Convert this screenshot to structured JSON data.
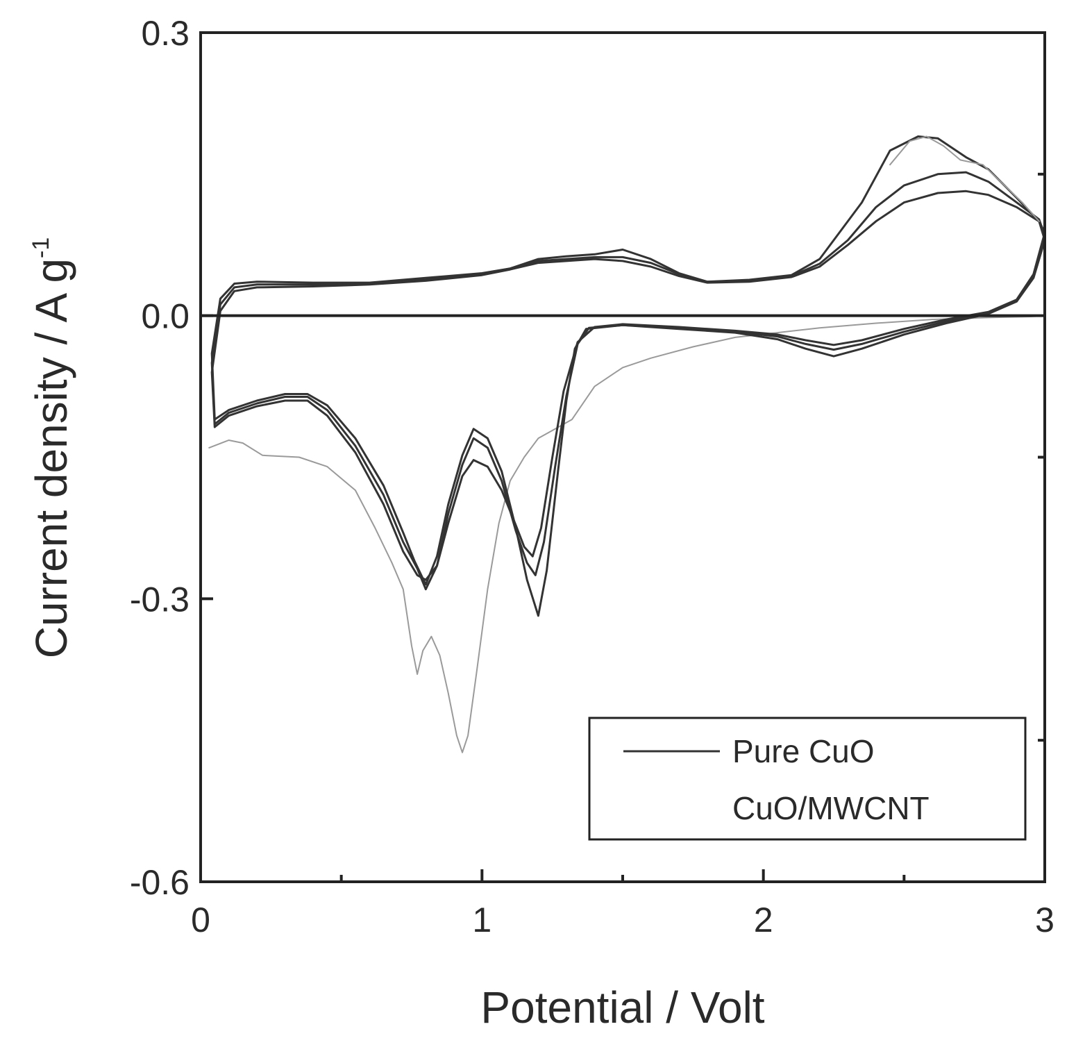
{
  "chart_data": {
    "type": "line",
    "title": "",
    "xlabel": "Potential / Volt",
    "ylabel_main": "Current density / A g",
    "ylabel_sup": "-1",
    "xlim": [
      0,
      3
    ],
    "ylim": [
      -0.6,
      0.3
    ],
    "x_major_ticks": [
      0,
      1,
      2,
      3
    ],
    "x_tick_labels": [
      "0",
      "1",
      "2",
      "3"
    ],
    "x_minor_ticks": [
      0.5,
      1.5,
      2.5
    ],
    "y_major_ticks": [
      0.3,
      0.0,
      -0.3,
      -0.6
    ],
    "y_tick_labels": [
      "0.3",
      "0.0",
      "-0.3",
      "-0.6"
    ],
    "y_minor_ticks": [
      0.15,
      -0.15,
      -0.45
    ],
    "grid": false,
    "legend": {
      "placement": "bottom-right",
      "entries": [
        {
          "label": "Pure CuO",
          "has_line": true
        },
        {
          "label": "CuO/MWCNT",
          "has_line": false
        }
      ]
    },
    "colors": {
      "line": "#333333",
      "faint_line": "#9a9a9a",
      "axis": "#222222"
    },
    "series": [
      {
        "cycle": "1",
        "style": "faint",
        "points": [
          [
            0.03,
            -0.14
          ],
          [
            0.1,
            -0.132
          ],
          [
            0.15,
            -0.135
          ],
          [
            0.22,
            -0.148
          ],
          [
            0.35,
            -0.15
          ],
          [
            0.45,
            -0.16
          ],
          [
            0.55,
            -0.185
          ],
          [
            0.62,
            -0.225
          ],
          [
            0.68,
            -0.262
          ],
          [
            0.72,
            -0.29
          ],
          [
            0.75,
            -0.35
          ],
          [
            0.77,
            -0.38
          ],
          [
            0.79,
            -0.355
          ],
          [
            0.82,
            -0.34
          ],
          [
            0.85,
            -0.36
          ],
          [
            0.88,
            -0.4
          ],
          [
            0.91,
            -0.445
          ],
          [
            0.93,
            -0.463
          ],
          [
            0.95,
            -0.445
          ],
          [
            0.98,
            -0.38
          ],
          [
            1.02,
            -0.29
          ],
          [
            1.06,
            -0.22
          ],
          [
            1.1,
            -0.175
          ],
          [
            1.15,
            -0.15
          ],
          [
            1.2,
            -0.13
          ],
          [
            1.26,
            -0.12
          ],
          [
            1.32,
            -0.11
          ],
          [
            1.4,
            -0.075
          ],
          [
            1.5,
            -0.055
          ],
          [
            1.6,
            -0.045
          ],
          [
            1.75,
            -0.033
          ],
          [
            1.9,
            -0.023
          ],
          [
            2.05,
            -0.018
          ],
          [
            2.2,
            -0.013
          ],
          [
            2.4,
            -0.008
          ],
          [
            2.6,
            -0.004
          ],
          [
            2.8,
            -0.002
          ],
          [
            2.95,
            -0.001
          ],
          [
            3.0,
            0.0
          ]
        ]
      },
      {
        "cycle": "2",
        "style": "dark",
        "points": [
          [
            0.05,
            -0.11
          ],
          [
            0.1,
            -0.1
          ],
          [
            0.2,
            -0.09
          ],
          [
            0.3,
            -0.083
          ],
          [
            0.38,
            -0.083
          ],
          [
            0.45,
            -0.095
          ],
          [
            0.55,
            -0.13
          ],
          [
            0.65,
            -0.18
          ],
          [
            0.72,
            -0.23
          ],
          [
            0.76,
            -0.26
          ],
          [
            0.8,
            -0.285
          ],
          [
            0.84,
            -0.255
          ],
          [
            0.88,
            -0.2
          ],
          [
            0.93,
            -0.148
          ],
          [
            0.97,
            -0.12
          ],
          [
            1.02,
            -0.13
          ],
          [
            1.07,
            -0.165
          ],
          [
            1.12,
            -0.225
          ],
          [
            1.16,
            -0.28
          ],
          [
            1.2,
            -0.318
          ],
          [
            1.23,
            -0.27
          ],
          [
            1.27,
            -0.165
          ],
          [
            1.3,
            -0.09
          ],
          [
            1.33,
            -0.035
          ],
          [
            1.37,
            -0.014
          ],
          [
            1.5,
            -0.01
          ],
          [
            1.7,
            -0.014
          ],
          [
            1.9,
            -0.018
          ],
          [
            2.05,
            -0.025
          ],
          [
            2.15,
            -0.035
          ],
          [
            2.25,
            -0.043
          ],
          [
            2.35,
            -0.035
          ],
          [
            2.5,
            -0.02
          ],
          [
            2.65,
            -0.008
          ],
          [
            2.8,
            0.002
          ],
          [
            2.9,
            0.015
          ],
          [
            2.96,
            0.04
          ],
          [
            3.0,
            0.08
          ],
          [
            2.98,
            0.1
          ],
          [
            2.9,
            0.125
          ],
          [
            2.8,
            0.155
          ],
          [
            2.72,
            0.168
          ],
          [
            2.62,
            0.188
          ],
          [
            2.55,
            0.19
          ],
          [
            2.45,
            0.175
          ],
          [
            2.35,
            0.12
          ],
          [
            2.2,
            0.06
          ],
          [
            2.1,
            0.043
          ],
          [
            1.95,
            0.038
          ],
          [
            1.8,
            0.036
          ],
          [
            1.7,
            0.045
          ],
          [
            1.6,
            0.06
          ],
          [
            1.5,
            0.07
          ],
          [
            1.4,
            0.065
          ],
          [
            1.3,
            0.063
          ],
          [
            1.2,
            0.06
          ],
          [
            1.1,
            0.05
          ],
          [
            1.0,
            0.045
          ],
          [
            0.8,
            0.04
          ],
          [
            0.6,
            0.035
          ],
          [
            0.4,
            0.035
          ],
          [
            0.2,
            0.036
          ],
          [
            0.12,
            0.034
          ],
          [
            0.07,
            0.018
          ],
          [
            0.04,
            -0.04
          ],
          [
            0.05,
            -0.11
          ]
        ]
      },
      {
        "cycle": "3",
        "style": "dark",
        "points": [
          [
            0.05,
            -0.115
          ],
          [
            0.1,
            -0.103
          ],
          [
            0.2,
            -0.093
          ],
          [
            0.3,
            -0.086
          ],
          [
            0.38,
            -0.086
          ],
          [
            0.45,
            -0.1
          ],
          [
            0.55,
            -0.138
          ],
          [
            0.65,
            -0.19
          ],
          [
            0.72,
            -0.24
          ],
          [
            0.77,
            -0.268
          ],
          [
            0.8,
            -0.29
          ],
          [
            0.84,
            -0.265
          ],
          [
            0.88,
            -0.21
          ],
          [
            0.93,
            -0.158
          ],
          [
            0.97,
            -0.13
          ],
          [
            1.02,
            -0.14
          ],
          [
            1.07,
            -0.175
          ],
          [
            1.12,
            -0.228
          ],
          [
            1.16,
            -0.262
          ],
          [
            1.19,
            -0.275
          ],
          [
            1.22,
            -0.24
          ],
          [
            1.26,
            -0.16
          ],
          [
            1.3,
            -0.085
          ],
          [
            1.34,
            -0.03
          ],
          [
            1.38,
            -0.013
          ],
          [
            1.5,
            -0.01
          ],
          [
            1.7,
            -0.013
          ],
          [
            1.9,
            -0.017
          ],
          [
            2.05,
            -0.022
          ],
          [
            2.15,
            -0.03
          ],
          [
            2.25,
            -0.036
          ],
          [
            2.35,
            -0.03
          ],
          [
            2.5,
            -0.017
          ],
          [
            2.65,
            -0.006
          ],
          [
            2.8,
            0.003
          ],
          [
            2.9,
            0.016
          ],
          [
            2.96,
            0.042
          ],
          [
            3.0,
            0.085
          ],
          [
            2.98,
            0.102
          ],
          [
            2.9,
            0.12
          ],
          [
            2.8,
            0.142
          ],
          [
            2.72,
            0.152
          ],
          [
            2.62,
            0.15
          ],
          [
            2.5,
            0.138
          ],
          [
            2.4,
            0.115
          ],
          [
            2.3,
            0.08
          ],
          [
            2.2,
            0.055
          ],
          [
            2.1,
            0.042
          ],
          [
            1.95,
            0.037
          ],
          [
            1.8,
            0.036
          ],
          [
            1.7,
            0.044
          ],
          [
            1.6,
            0.056
          ],
          [
            1.5,
            0.062
          ],
          [
            1.4,
            0.062
          ],
          [
            1.3,
            0.06
          ],
          [
            1.2,
            0.058
          ],
          [
            1.1,
            0.05
          ],
          [
            1.0,
            0.044
          ],
          [
            0.8,
            0.038
          ],
          [
            0.6,
            0.034
          ],
          [
            0.4,
            0.033
          ],
          [
            0.2,
            0.033
          ],
          [
            0.12,
            0.03
          ],
          [
            0.07,
            0.012
          ],
          [
            0.04,
            -0.05
          ],
          [
            0.05,
            -0.115
          ]
        ]
      },
      {
        "cycle": "4",
        "style": "dark",
        "points": [
          [
            0.05,
            -0.118
          ],
          [
            0.1,
            -0.106
          ],
          [
            0.2,
            -0.096
          ],
          [
            0.3,
            -0.09
          ],
          [
            0.38,
            -0.09
          ],
          [
            0.45,
            -0.106
          ],
          [
            0.55,
            -0.145
          ],
          [
            0.65,
            -0.2
          ],
          [
            0.72,
            -0.25
          ],
          [
            0.77,
            -0.275
          ],
          [
            0.8,
            -0.28
          ],
          [
            0.84,
            -0.265
          ],
          [
            0.88,
            -0.22
          ],
          [
            0.93,
            -0.17
          ],
          [
            0.97,
            -0.153
          ],
          [
            1.02,
            -0.16
          ],
          [
            1.07,
            -0.185
          ],
          [
            1.12,
            -0.222
          ],
          [
            1.15,
            -0.245
          ],
          [
            1.18,
            -0.255
          ],
          [
            1.21,
            -0.225
          ],
          [
            1.25,
            -0.15
          ],
          [
            1.29,
            -0.08
          ],
          [
            1.34,
            -0.028
          ],
          [
            1.4,
            -0.012
          ],
          [
            1.5,
            -0.009
          ],
          [
            1.7,
            -0.012
          ],
          [
            1.9,
            -0.016
          ],
          [
            2.05,
            -0.02
          ],
          [
            2.15,
            -0.026
          ],
          [
            2.25,
            -0.031
          ],
          [
            2.35,
            -0.026
          ],
          [
            2.5,
            -0.014
          ],
          [
            2.65,
            -0.004
          ],
          [
            2.8,
            0.004
          ],
          [
            2.9,
            0.017
          ],
          [
            2.96,
            0.044
          ],
          [
            3.0,
            0.088
          ],
          [
            2.98,
            0.1
          ],
          [
            2.9,
            0.115
          ],
          [
            2.8,
            0.128
          ],
          [
            2.72,
            0.132
          ],
          [
            2.62,
            0.13
          ],
          [
            2.5,
            0.12
          ],
          [
            2.4,
            0.1
          ],
          [
            2.3,
            0.075
          ],
          [
            2.2,
            0.052
          ],
          [
            2.1,
            0.041
          ],
          [
            1.95,
            0.036
          ],
          [
            1.8,
            0.035
          ],
          [
            1.7,
            0.042
          ],
          [
            1.6,
            0.052
          ],
          [
            1.5,
            0.058
          ],
          [
            1.4,
            0.06
          ],
          [
            1.3,
            0.058
          ],
          [
            1.2,
            0.056
          ],
          [
            1.1,
            0.049
          ],
          [
            1.0,
            0.043
          ],
          [
            0.8,
            0.037
          ],
          [
            0.6,
            0.033
          ],
          [
            0.4,
            0.031
          ],
          [
            0.2,
            0.03
          ],
          [
            0.12,
            0.026
          ],
          [
            0.07,
            0.005
          ],
          [
            0.04,
            -0.06
          ],
          [
            0.05,
            -0.118
          ]
        ]
      },
      {
        "cycle": "5",
        "style": "faint",
        "points": [
          [
            2.45,
            0.16
          ],
          [
            2.52,
            0.185
          ],
          [
            2.58,
            0.19
          ],
          [
            2.64,
            0.18
          ],
          [
            2.7,
            0.165
          ],
          [
            2.78,
            0.16
          ],
          [
            2.85,
            0.14
          ],
          [
            2.92,
            0.12
          ],
          [
            2.98,
            0.1
          ]
        ]
      }
    ]
  }
}
